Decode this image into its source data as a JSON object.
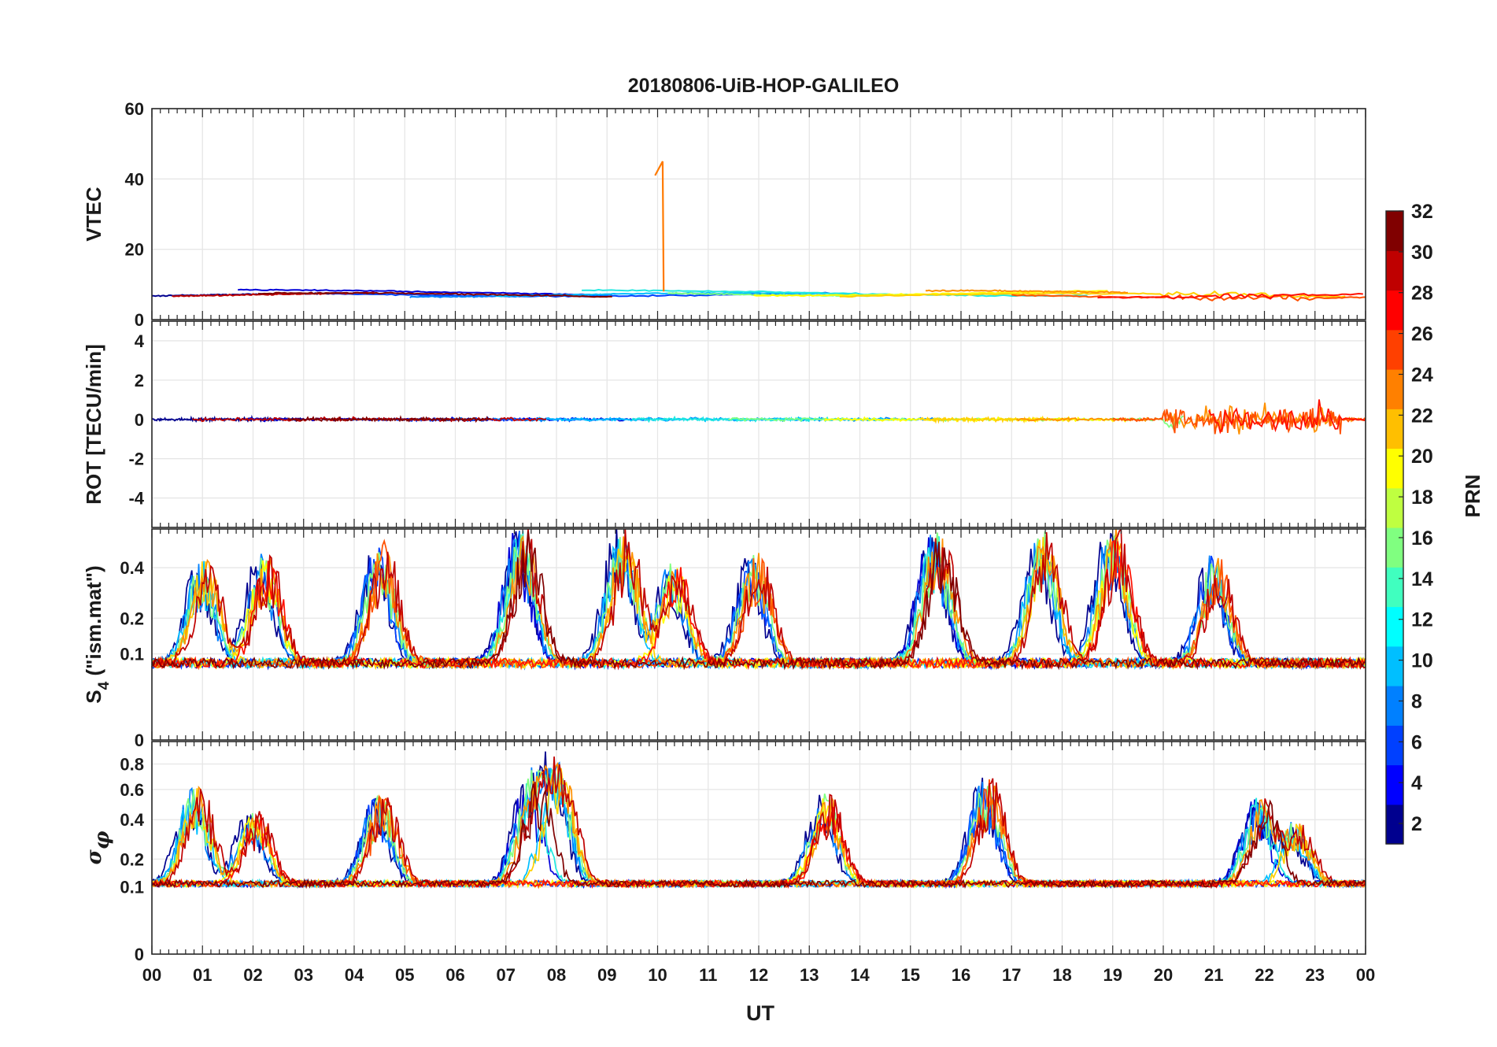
{
  "chart_data": {
    "type": "line",
    "title": "20180806-UiB-HOP-GALILEO",
    "xlabel": "UT",
    "x_ticks": [
      "00",
      "01",
      "02",
      "03",
      "04",
      "05",
      "06",
      "07",
      "08",
      "09",
      "10",
      "11",
      "12",
      "13",
      "14",
      "15",
      "16",
      "17",
      "18",
      "19",
      "20",
      "21",
      "22",
      "23",
      "00"
    ],
    "xlim": [
      0,
      24
    ],
    "grid": true,
    "colorbar": {
      "label": "PRN",
      "range": [
        1,
        32
      ],
      "ticks": [
        2,
        4,
        6,
        8,
        10,
        12,
        14,
        16,
        18,
        20,
        22,
        24,
        26,
        28,
        30,
        32
      ],
      "colormap": "jet",
      "placement": "right"
    },
    "panels": [
      {
        "id": "vtec",
        "ylabel": "VTEC",
        "ylim": [
          0,
          60
        ],
        "y_ticks": [
          0,
          20,
          40,
          60
        ],
        "y_tick_labels": [
          "0",
          "20",
          "40",
          "60"
        ],
        "baseline": 7,
        "spike": {
          "x": 10.1,
          "y": 45
        }
      },
      {
        "id": "rot",
        "ylabel": "ROT [TECU/min]",
        "ylim": [
          -5.5,
          5
        ],
        "y_ticks": [
          -4,
          -2,
          0,
          2,
          4
        ],
        "y_tick_labels": [
          "-4",
          "-2",
          "0",
          "2",
          "4"
        ],
        "active_window_ut": [
          20,
          23.5
        ]
      },
      {
        "id": "s4",
        "ylabel": "S4 (\"ism.mat\")",
        "ylabel_main": "S",
        "ylabel_sub": "4",
        "ylabel_rest": " (\"ism.mat\")",
        "ylim": [
          0,
          0.6
        ],
        "scale": "sqrt",
        "y_ticks": [
          0,
          0.1,
          0.2,
          0.4
        ],
        "y_tick_labels": [
          "0",
          "0.1",
          "0.2",
          "0.4"
        ],
        "peaks": [
          {
            "ut": 0.9,
            "value": 0.44
          },
          {
            "ut": 2.1,
            "value": 0.46
          },
          {
            "ut": 4.4,
            "value": 0.52
          },
          {
            "ut": 7.2,
            "value": 0.6
          },
          {
            "ut": 9.2,
            "value": 0.6
          },
          {
            "ut": 10.2,
            "value": 0.42
          },
          {
            "ut": 11.8,
            "value": 0.47
          },
          {
            "ut": 15.4,
            "value": 0.6
          },
          {
            "ut": 17.5,
            "value": 0.6
          },
          {
            "ut": 18.9,
            "value": 0.6
          },
          {
            "ut": 20.9,
            "value": 0.45
          }
        ]
      },
      {
        "id": "sigma_phi",
        "ylabel": "σφ",
        "ylabel_main": "σ",
        "ylabel_sub": "φ",
        "ylim": [
          0,
          1
        ],
        "scale": "sqrt",
        "y_ticks": [
          0,
          0.1,
          0.2,
          0.4,
          0.6,
          0.8
        ],
        "y_tick_labels": [
          "0",
          "0.1",
          "0.2",
          "0.4",
          "0.6",
          "0.8"
        ],
        "peaks": [
          {
            "ut": 0.75,
            "value": 0.62
          },
          {
            "ut": 1.9,
            "value": 0.45
          },
          {
            "ut": 4.4,
            "value": 0.58
          },
          {
            "ut": 7.4,
            "value": 0.69
          },
          {
            "ut": 7.9,
            "value": 0.84
          },
          {
            "ut": 13.2,
            "value": 0.57
          },
          {
            "ut": 16.4,
            "value": 0.69
          },
          {
            "ut": 21.8,
            "value": 0.54
          },
          {
            "ut": 22.5,
            "value": 0.38
          }
        ]
      }
    ],
    "series_colors": [
      "#00008f",
      "#0000d9",
      "#0040ff",
      "#0080ff",
      "#00bfff",
      "#20e8e0",
      "#80ff80",
      "#ffff00",
      "#ffd000",
      "#ff9000",
      "#ff5000",
      "#ff1000",
      "#c00000",
      "#800000"
    ]
  }
}
